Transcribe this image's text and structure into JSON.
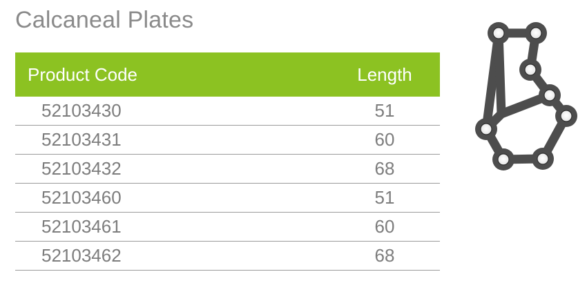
{
  "page": {
    "title": "Calcaneal Plates"
  },
  "table": {
    "headers": {
      "code": "Product Code",
      "length": "Length"
    },
    "rows": [
      {
        "code": "52103430",
        "length": "51"
      },
      {
        "code": "52103431",
        "length": "60"
      },
      {
        "code": "52103432",
        "length": "68"
      },
      {
        "code": "52103460",
        "length": "51"
      },
      {
        "code": "52103461",
        "length": "60"
      },
      {
        "code": "52103462",
        "length": "68"
      }
    ]
  },
  "colors": {
    "header_green": "#8cc222",
    "text_gray": "#7d7d7d",
    "title_gray": "#8a8a8a",
    "plate_dark": "#4d4d4d"
  },
  "image": {
    "icon": "calcaneal-plate-illustration"
  }
}
